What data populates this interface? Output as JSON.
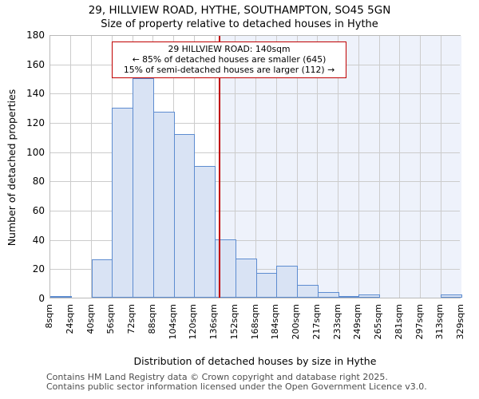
{
  "title": "29, HILLVIEW ROAD, HYTHE, SOUTHAMPTON, SO45 5GN",
  "subtitle": "Size of property relative to detached houses in Hythe",
  "annotation": {
    "line1": "29 HILLVIEW ROAD: 140sqm",
    "line2": "← 85% of detached houses are smaller (645)",
    "line3": "15% of semi-detached houses are larger (112) →"
  },
  "chart_data": {
    "type": "bar",
    "title": "29, HILLVIEW ROAD, HYTHE, SOUTHAMPTON, SO45 5GN",
    "subtitle": "Size of property relative to detached houses in Hythe",
    "xlabel": "Distribution of detached houses by size in Hythe",
    "ylabel": "Number of detached properties",
    "categories": [
      "8sqm",
      "24sqm",
      "40sqm",
      "56sqm",
      "72sqm",
      "88sqm",
      "104sqm",
      "120sqm",
      "136sqm",
      "152sqm",
      "168sqm",
      "184sqm",
      "200sqm",
      "217sqm",
      "233sqm",
      "249sqm",
      "265sqm",
      "281sqm",
      "297sqm",
      "313sqm",
      "329sqm"
    ],
    "values": [
      1,
      0,
      26,
      130,
      150,
      127,
      112,
      90,
      40,
      27,
      17,
      22,
      9,
      4,
      1,
      2,
      0,
      0,
      0,
      2
    ],
    "ylim": [
      0,
      180
    ],
    "ytick_step": 20,
    "grid": true,
    "legend": "none",
    "marker_value_sqm": 140,
    "marker_color": "#c00000",
    "bar_fill": "#d9e3f4",
    "bar_edge": "#5d8cd0",
    "highlight_bg": "#eef2fb",
    "gridline_color": "#cccccc"
  },
  "footer": {
    "line1": "Contains HM Land Registry data © Crown copyright and database right 2025.",
    "line2": "Contains public sector information licensed under the Open Government Licence v3.0."
  }
}
